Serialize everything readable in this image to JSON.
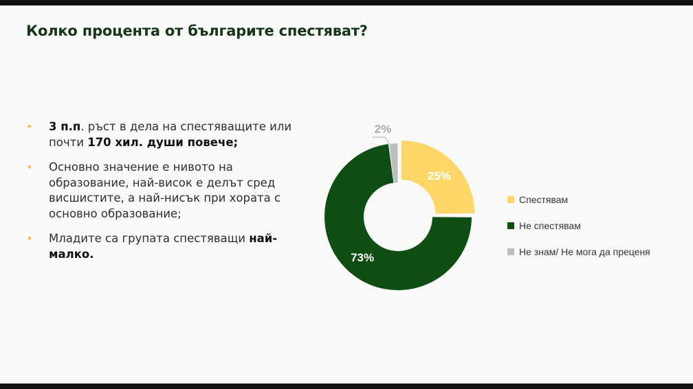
{
  "slide": {
    "title": "Колко процента от българите спестяват?"
  },
  "bullets": [
    [
      {
        "text": "3 п.п",
        "bold": true
      },
      {
        "text": ". ръст в дела на спестяващите или почти ",
        "bold": false
      },
      {
        "text": "170 хил. души повече;",
        "bold": true
      }
    ],
    [
      {
        "text": "Основно значение е нивото на образование, най-висок е делът сред висшистите, а най-нисък при хората с основно образование;",
        "bold": false
      }
    ],
    [
      {
        "text": "Младите са групата спестяващи ",
        "bold": false
      },
      {
        "text": "най-малко.",
        "bold": true
      }
    ]
  ],
  "colors": {
    "accent": "#f2c14e",
    "dark_green": "#0e4d13",
    "title": "#16331b"
  },
  "chart_data": {
    "type": "pie",
    "subtype": "donut",
    "title": "",
    "categories": [
      "Спестявам",
      "Не спестявам",
      "Не знам/ Не мога да преценя"
    ],
    "values": [
      25,
      73,
      2
    ],
    "data_labels": [
      "25%",
      "73%",
      "2%"
    ],
    "colors": [
      "#fcd667",
      "#0e4d13",
      "#bdbdbd"
    ],
    "start_angle_deg": 0,
    "direction": "clockwise",
    "largest_slice_offset": false,
    "first_slice_exploded": true,
    "legend": "right"
  }
}
